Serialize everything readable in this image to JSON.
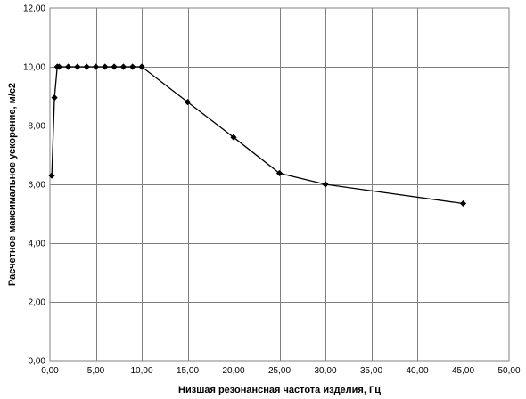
{
  "chart_data": {
    "type": "line",
    "title": "",
    "xlabel": "Низшая резонансная частота изделия, Гц",
    "ylabel": "Расчетное максимальное ускорение, м/с2",
    "xlim": [
      0,
      50
    ],
    "ylim": [
      0,
      12
    ],
    "xticks": [
      0,
      5,
      10,
      15,
      20,
      25,
      30,
      35,
      40,
      45,
      50
    ],
    "yticks": [
      0,
      2,
      4,
      6,
      8,
      10,
      12
    ],
    "xtick_labels": [
      "0,00",
      "5,00",
      "10,00",
      "15,00",
      "20,00",
      "25,00",
      "30,00",
      "35,00",
      "40,00",
      "45,00",
      "50,00"
    ],
    "ytick_labels": [
      "0,00",
      "2,00",
      "4,00",
      "6,00",
      "8,00",
      "10,00",
      "12,00"
    ],
    "grid": true,
    "legend": "none",
    "marker": "diamond",
    "series": [
      {
        "x": [
          0.2,
          0.5,
          0.8,
          1.0,
          2,
          3,
          4,
          5,
          6,
          7,
          8,
          9,
          10,
          15,
          20,
          25,
          30,
          45
        ],
        "y": [
          6.3,
          8.95,
          10.0,
          10.0,
          10.0,
          10.0,
          10.0,
          10.0,
          10.0,
          10.0,
          10.0,
          10.0,
          10.0,
          8.8,
          7.6,
          6.38,
          6.0,
          5.35
        ]
      }
    ],
    "colors": {
      "plot_border": "#808080",
      "grid": "#808080",
      "line": "#000000",
      "marker": "#000000"
    }
  }
}
